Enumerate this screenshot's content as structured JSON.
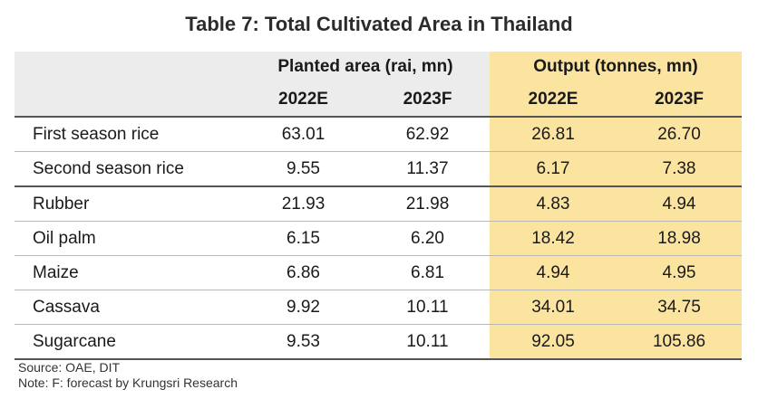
{
  "title": "Table 7: Total Cultivated Area in Thailand",
  "header": {
    "group_planted": "Planted area (rai, mn)",
    "group_output": "Output (tonnes, mn)",
    "years": [
      "2022E",
      "2023F",
      "2022E",
      "2023F"
    ]
  },
  "rows": [
    {
      "label": "First season rice",
      "values": [
        "63.01",
        "62.92",
        "26.81",
        "26.70"
      ]
    },
    {
      "label": "Second season rice",
      "values": [
        "9.55",
        "11.37",
        "6.17",
        "7.38"
      ]
    },
    {
      "label": "Rubber",
      "values": [
        "21.93",
        "21.98",
        "4.83",
        "4.94"
      ]
    },
    {
      "label": "Oil palm",
      "values": [
        "6.15",
        "6.20",
        "18.42",
        "18.98"
      ]
    },
    {
      "label": "Maize",
      "values": [
        "6.86",
        "6.81",
        "4.94",
        "4.95"
      ]
    },
    {
      "label": "Cassava",
      "values": [
        "9.92",
        "10.11",
        "34.01",
        "34.75"
      ]
    },
    {
      "label": "Sugarcane",
      "values": [
        "9.53",
        "10.11",
        "92.05",
        "105.86"
      ]
    }
  ],
  "notes": {
    "source": "Source: OAE, DIT",
    "note": "Note: F: forecast by Krungsri Research"
  },
  "colors": {
    "header_bg": "#ececec",
    "output_bg": "#fbe3a0"
  }
}
